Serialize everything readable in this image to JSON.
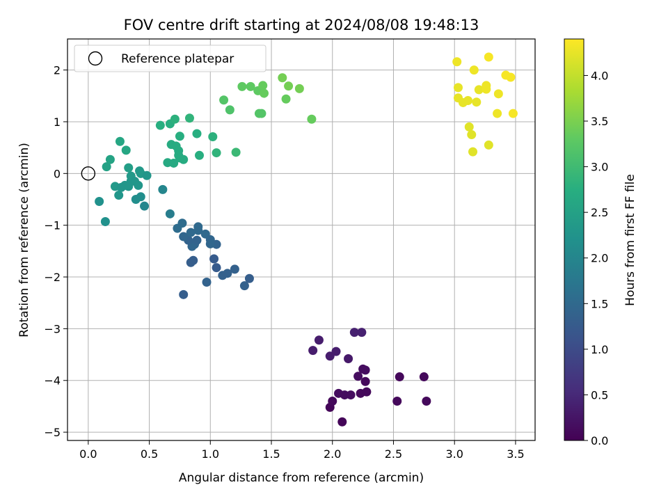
{
  "chart_data": {
    "type": "scatter",
    "title": "FOV centre drift starting at 2024/08/08 19:48:13",
    "xlabel": "Angular distance from reference (arcmin)",
    "ylabel": "Rotation from reference (arcmin)",
    "xlim": [
      -0.17,
      3.66
    ],
    "ylim": [
      -5.16,
      2.6
    ],
    "x_ticks": [
      "0.0",
      "0.5",
      "1.0",
      "1.5",
      "2.0",
      "2.5",
      "3.0",
      "3.5"
    ],
    "y_ticks": [
      "2",
      "1",
      "0",
      "−1",
      "−2",
      "−3",
      "−4",
      "−5"
    ],
    "grid": true,
    "legend": {
      "position": "top-left",
      "label": "Reference platepar"
    },
    "reference_point": {
      "x": 0.0,
      "y": 0.0
    },
    "colorbar": {
      "label": "Hours from first FF file",
      "colormap": "viridis",
      "range": [
        0.0,
        4.4
      ],
      "ticks": [
        "0.0",
        "0.5",
        "1.0",
        "1.5",
        "2.0",
        "2.5",
        "3.0",
        "3.5",
        "4.0"
      ]
    },
    "points": [
      [
        2.27,
        -4.02,
        0.1
      ],
      [
        1.98,
        -4.52,
        0.05
      ],
      [
        2.08,
        -4.8,
        0.05
      ],
      [
        2.0,
        -4.4,
        0.1
      ],
      [
        2.05,
        -4.25,
        0.15
      ],
      [
        2.1,
        -4.28,
        0.15
      ],
      [
        2.15,
        -4.28,
        0.15
      ],
      [
        2.23,
        -4.25,
        0.1
      ],
      [
        2.28,
        -4.22,
        0.1
      ],
      [
        2.25,
        -3.78,
        0.15
      ],
      [
        2.27,
        -3.8,
        0.15
      ],
      [
        2.21,
        -3.92,
        0.15
      ],
      [
        2.55,
        -3.93,
        0.1
      ],
      [
        2.53,
        -4.4,
        0.1
      ],
      [
        2.75,
        -3.93,
        0.1
      ],
      [
        2.77,
        -4.4,
        0.1
      ],
      [
        1.84,
        -3.42,
        0.35
      ],
      [
        1.89,
        -3.22,
        0.35
      ],
      [
        1.98,
        -3.53,
        0.35
      ],
      [
        2.03,
        -3.44,
        0.35
      ],
      [
        2.13,
        -3.58,
        0.3
      ],
      [
        2.18,
        -3.07,
        0.4
      ],
      [
        2.24,
        -3.07,
        0.4
      ],
      [
        0.78,
        -2.34,
        1.3
      ],
      [
        0.97,
        -2.1,
        1.4
      ],
      [
        1.1,
        -1.97,
        1.35
      ],
      [
        1.14,
        -1.93,
        1.35
      ],
      [
        1.2,
        -1.85,
        1.35
      ],
      [
        1.28,
        -2.17,
        1.35
      ],
      [
        1.32,
        -2.03,
        1.3
      ],
      [
        0.84,
        -1.72,
        1.3
      ],
      [
        0.86,
        -1.68,
        1.3
      ],
      [
        1.03,
        -1.65,
        1.25
      ],
      [
        1.05,
        -1.82,
        1.25
      ],
      [
        0.85,
        -1.41,
        1.45
      ],
      [
        0.87,
        -1.37,
        1.45
      ],
      [
        0.89,
        -1.29,
        1.4
      ],
      [
        0.82,
        -1.29,
        1.4
      ],
      [
        0.78,
        -1.22,
        1.45
      ],
      [
        0.73,
        -1.06,
        1.55
      ],
      [
        0.77,
        -0.96,
        1.55
      ],
      [
        0.84,
        -1.14,
        1.5
      ],
      [
        0.9,
        -1.1,
        1.5
      ],
      [
        0.9,
        -1.03,
        1.5
      ],
      [
        0.96,
        -1.17,
        1.5
      ],
      [
        1.0,
        -1.28,
        1.45
      ],
      [
        1.05,
        -1.37,
        1.4
      ],
      [
        1.0,
        -1.36,
        1.45
      ],
      [
        0.09,
        -0.54,
        2.2
      ],
      [
        0.14,
        -0.93,
        2.2
      ],
      [
        0.39,
        -0.5,
        2.15
      ],
      [
        0.43,
        -0.45,
        2.15
      ],
      [
        0.46,
        -0.63,
        2.0
      ],
      [
        0.61,
        -0.31,
        2.0
      ],
      [
        0.67,
        -0.78,
        1.85
      ],
      [
        0.22,
        -0.25,
        2.35
      ],
      [
        0.25,
        -0.42,
        2.3
      ],
      [
        0.27,
        -0.27,
        2.3
      ],
      [
        0.3,
        -0.23,
        2.3
      ],
      [
        0.33,
        -0.25,
        2.3
      ],
      [
        0.35,
        -0.15,
        2.3
      ],
      [
        0.35,
        -0.05,
        2.35
      ],
      [
        0.38,
        -0.15,
        2.3
      ],
      [
        0.41,
        -0.23,
        2.3
      ],
      [
        0.42,
        0.05,
        2.35
      ],
      [
        0.43,
        -0.0,
        2.35
      ],
      [
        0.48,
        -0.04,
        2.3
      ],
      [
        0.33,
        0.11,
        2.45
      ],
      [
        0.15,
        0.13,
        2.5
      ],
      [
        0.18,
        0.27,
        2.55
      ],
      [
        0.31,
        0.45,
        2.6
      ],
      [
        0.26,
        0.62,
        2.6
      ],
      [
        0.59,
        0.93,
        2.75
      ],
      [
        0.65,
        0.21,
        2.65
      ],
      [
        0.68,
        0.56,
        2.7
      ],
      [
        0.7,
        0.2,
        2.65
      ],
      [
        0.67,
        0.96,
        2.75
      ],
      [
        0.71,
        1.05,
        2.8
      ],
      [
        0.72,
        0.53,
        2.7
      ],
      [
        0.74,
        0.44,
        2.7
      ],
      [
        0.74,
        0.35,
        2.7
      ],
      [
        0.75,
        0.3,
        2.7
      ],
      [
        0.78,
        0.27,
        2.7
      ],
      [
        0.75,
        0.72,
        2.75
      ],
      [
        0.83,
        1.07,
        2.85
      ],
      [
        0.89,
        0.77,
        2.75
      ],
      [
        0.91,
        0.35,
        2.75
      ],
      [
        1.02,
        0.71,
        2.8
      ],
      [
        1.05,
        0.4,
        2.85
      ],
      [
        1.21,
        0.41,
        2.95
      ],
      [
        1.11,
        1.42,
        3.2
      ],
      [
        1.16,
        1.23,
        3.15
      ],
      [
        1.26,
        1.68,
        3.3
      ],
      [
        1.33,
        1.68,
        3.3
      ],
      [
        1.39,
        1.6,
        3.3
      ],
      [
        1.4,
        1.16,
        3.2
      ],
      [
        1.42,
        1.16,
        3.2
      ],
      [
        1.43,
        1.7,
        3.35
      ],
      [
        1.44,
        1.55,
        3.35
      ],
      [
        1.59,
        1.85,
        3.45
      ],
      [
        1.62,
        1.44,
        3.35
      ],
      [
        1.64,
        1.69,
        3.45
      ],
      [
        1.73,
        1.64,
        3.45
      ],
      [
        1.83,
        1.05,
        3.35
      ],
      [
        3.02,
        2.16,
        4.3
      ],
      [
        3.03,
        1.66,
        4.25
      ],
      [
        3.03,
        1.46,
        4.25
      ],
      [
        3.07,
        1.37,
        4.25
      ],
      [
        3.11,
        1.41,
        4.25
      ],
      [
        3.12,
        0.9,
        4.2
      ],
      [
        3.14,
        0.75,
        4.2
      ],
      [
        3.15,
        0.42,
        4.2
      ],
      [
        3.16,
        2.0,
        4.3
      ],
      [
        3.18,
        1.38,
        4.25
      ],
      [
        3.2,
        1.62,
        4.25
      ],
      [
        3.26,
        1.63,
        4.3
      ],
      [
        3.26,
        1.7,
        4.3
      ],
      [
        3.28,
        2.25,
        4.35
      ],
      [
        3.28,
        0.55,
        4.2
      ],
      [
        3.35,
        1.16,
        4.3
      ],
      [
        3.36,
        1.54,
        4.3
      ],
      [
        3.42,
        1.9,
        4.35
      ],
      [
        3.46,
        1.86,
        4.35
      ],
      [
        3.48,
        1.16,
        4.35
      ]
    ]
  }
}
